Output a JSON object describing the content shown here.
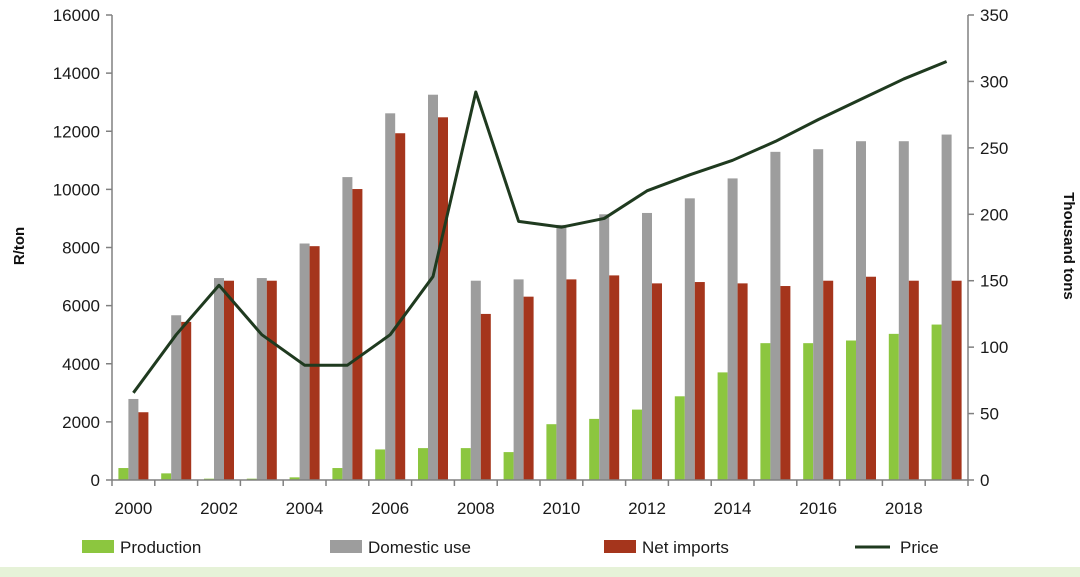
{
  "chart_data": {
    "type": "bar",
    "title": "",
    "x": [
      2000,
      2001,
      2002,
      2003,
      2004,
      2005,
      2006,
      2007,
      2008,
      2009,
      2010,
      2011,
      2012,
      2013,
      2014,
      2015,
      2016,
      2017,
      2018,
      2019
    ],
    "x_tick_labels": [
      "2000",
      "2002",
      "2004",
      "2006",
      "2008",
      "2010",
      "2012",
      "2014",
      "2016",
      "2018"
    ],
    "ylabel_left": "R/ton",
    "ylabel_right": "Thousand tons",
    "ylim_left": [
      0,
      16000
    ],
    "ylim_right": [
      0,
      350
    ],
    "yticks_left": [
      "0",
      "2000",
      "4000",
      "6000",
      "8000",
      "10000",
      "12000",
      "14000",
      "16000"
    ],
    "yticks_right": [
      "0",
      "50",
      "100",
      "150",
      "200",
      "250",
      "300",
      "350"
    ],
    "grid": false,
    "legend_position": "bottom",
    "series": [
      {
        "name": "Production",
        "type": "bar",
        "axis": "right",
        "color": "#8cc63f",
        "values": [
          9,
          5,
          1,
          1,
          2,
          9,
          23,
          24,
          24,
          21,
          42,
          46,
          53,
          63,
          81,
          103,
          103,
          105,
          110,
          117
        ]
      },
      {
        "name": "Domestic use",
        "type": "bar",
        "axis": "right",
        "color": "#9d9d9d",
        "values": [
          61,
          124,
          152,
          152,
          178,
          228,
          276,
          290,
          150,
          151,
          192,
          200,
          201,
          212,
          227,
          247,
          249,
          255,
          255,
          260
        ]
      },
      {
        "name": "Net imports",
        "type": "bar",
        "axis": "right",
        "color": "#a5351c",
        "values": [
          51,
          119,
          150,
          150,
          176,
          219,
          261,
          273,
          125,
          138,
          151,
          154,
          148,
          149,
          148,
          146,
          150,
          153,
          150,
          150
        ]
      },
      {
        "name": "Price",
        "type": "line",
        "axis": "left",
        "color": "#1f3a1f",
        "values": [
          3000,
          5000,
          6700,
          5000,
          3950,
          3950,
          5000,
          7000,
          13350,
          8900,
          8700,
          9000,
          9950,
          10500,
          11000,
          11650,
          12400,
          13100,
          13800,
          14400
        ]
      }
    ]
  }
}
